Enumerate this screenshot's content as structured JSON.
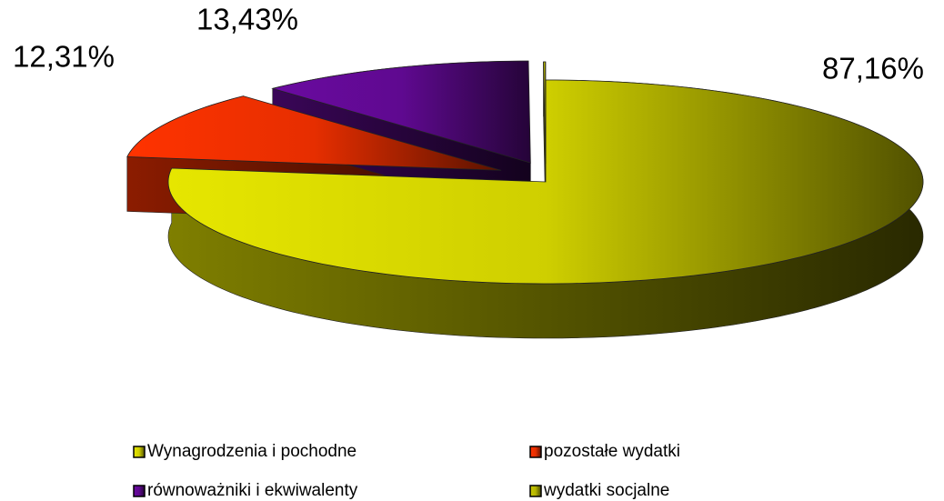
{
  "chart_data": {
    "type": "pie",
    "categories": [
      "Wynagrodzenia i pochodne",
      "pozostałe wydatki",
      "równoważniki i ekwiwalenty",
      "wydatki socjalne"
    ],
    "values": [
      87.16,
      12.31,
      13.43,
      0.1
    ],
    "value_labels": [
      "87,16%",
      "12,31%",
      "13,43%",
      null
    ],
    "colors": [
      "#e6e600",
      "#ff3300",
      "#6a0aa0",
      "#c8c800"
    ],
    "legend": "bottom"
  }
}
